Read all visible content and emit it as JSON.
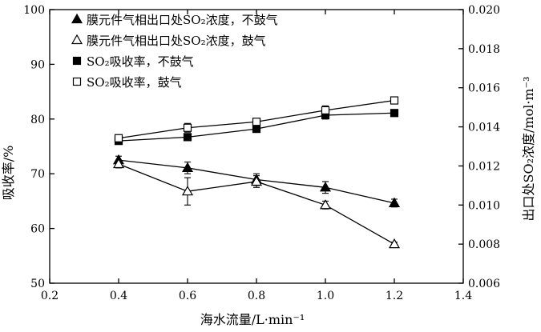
{
  "chart_data": {
    "type": "line",
    "x": [
      0.4,
      0.6,
      0.8,
      1.0,
      1.2
    ],
    "xlabel": "海水流量/L·min⁻¹",
    "ylabel_left": "吸收率/%",
    "ylabel_right": "出口处SO₂浓度/mol·m⁻³",
    "xlim": [
      0.2,
      1.4
    ],
    "xticks": [
      "0.2",
      "0.4",
      "0.6",
      "0.8",
      "1.0",
      "1.2",
      "1.4"
    ],
    "ylim_left": [
      50,
      100
    ],
    "yticks_left": [
      "50",
      "60",
      "70",
      "80",
      "90",
      "100"
    ],
    "ylim_right": [
      0.006,
      0.02
    ],
    "yticks_right": [
      "0.006",
      "0.008",
      "0.010",
      "0.012",
      "0.014",
      "0.016",
      "0.018",
      "0.020"
    ],
    "legend_position": "top-left",
    "series": [
      {
        "name": "膜元件气相出口处SO₂浓度，不鼓气",
        "axis": "right",
        "marker": "filled-triangle",
        "values": [
          0.0123,
          0.0119,
          0.0113,
          0.0109,
          0.0101
        ],
        "errors": [
          0.0002,
          0.0003,
          0.0003,
          0.0003,
          0.0002
        ]
      },
      {
        "name": "膜元件气相出口处SO₂浓度，鼓气",
        "axis": "right",
        "marker": "open-triangle",
        "values": [
          0.0121,
          0.0107,
          0.0112,
          0.01,
          0.008
        ],
        "errors": [
          0.0002,
          0.0007,
          0.0003,
          0.0002,
          0.0001
        ]
      },
      {
        "name": "SO₂吸收率，不鼓气",
        "axis": "left",
        "marker": "filled-square",
        "values": [
          76.0,
          76.7,
          78.2,
          80.7,
          81.1
        ],
        "errors": [
          0.3,
          0.4,
          0.5,
          0.7,
          0.3
        ]
      },
      {
        "name": "SO₂吸收率，鼓气",
        "axis": "left",
        "marker": "open-square",
        "values": [
          76.5,
          78.4,
          79.5,
          81.6,
          83.4
        ],
        "errors": [
          0.3,
          0.8,
          0.5,
          0.8,
          0.3
        ]
      }
    ]
  }
}
